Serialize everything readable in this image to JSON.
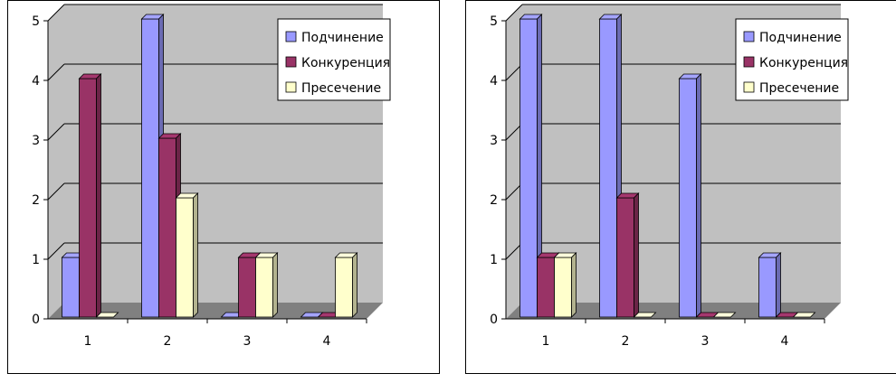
{
  "colors": {
    "wall": "#c0c0c0",
    "floor": "#808080",
    "grid": "#000000",
    "series": [
      "#9999ff",
      "#993366",
      "#ffffcc"
    ]
  },
  "chart_data": [
    {
      "type": "bar",
      "categories": [
        "1",
        "2",
        "3",
        "4"
      ],
      "series": [
        {
          "name": "Подчинение",
          "values": [
            1,
            5,
            0,
            0
          ]
        },
        {
          "name": "Конкуренция",
          "values": [
            4,
            3,
            1,
            0
          ]
        },
        {
          "name": "Пресечение",
          "values": [
            0,
            2,
            1,
            1
          ]
        }
      ],
      "ylim": [
        0,
        5
      ],
      "yticks": [
        "0",
        "1",
        "2",
        "3",
        "4",
        "5"
      ],
      "grid": true,
      "legend": "top-right"
    },
    {
      "type": "bar",
      "categories": [
        "1",
        "2",
        "3",
        "4"
      ],
      "series": [
        {
          "name": "Подчинение",
          "values": [
            5,
            5,
            4,
            1
          ]
        },
        {
          "name": "Конкуренция",
          "values": [
            1,
            2,
            0,
            0
          ]
        },
        {
          "name": "Пресечение",
          "values": [
            1,
            0,
            0,
            0
          ]
        }
      ],
      "ylim": [
        0,
        5
      ],
      "yticks": [
        "0",
        "1",
        "2",
        "3",
        "4",
        "5"
      ],
      "grid": true,
      "legend": "top-right"
    }
  ]
}
